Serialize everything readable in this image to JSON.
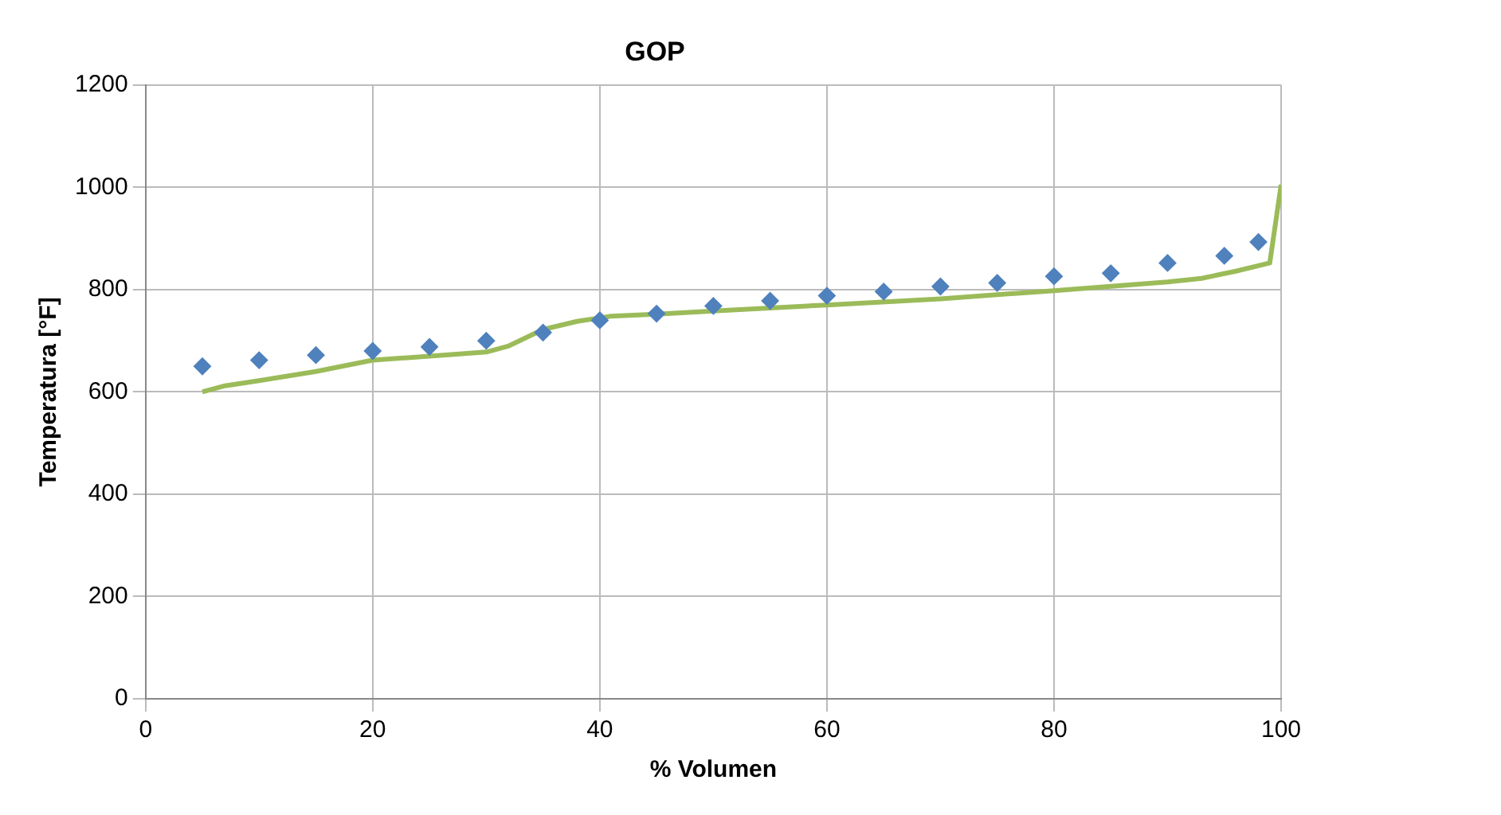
{
  "chart_data": {
    "type": "scatter",
    "title": "GOP",
    "xlabel": "% Volumen",
    "ylabel": "Temperatura [°F]",
    "xlim": [
      0,
      100
    ],
    "xticks": [
      0,
      20,
      40,
      60,
      80,
      100
    ],
    "ylim": [
      0,
      1200
    ],
    "yticks": [
      0,
      200,
      400,
      600,
      800,
      1000,
      1200
    ],
    "grid": true,
    "legend": false,
    "series": [
      {
        "type": "scatter",
        "marker": "diamond",
        "color": "#4f81bd",
        "x": [
          5,
          10,
          15,
          20,
          25,
          30,
          35,
          40,
          45,
          50,
          55,
          60,
          65,
          70,
          75,
          80,
          85,
          90,
          95,
          98
        ],
        "values": [
          650,
          662,
          672,
          680,
          688,
          700,
          716,
          740,
          753,
          768,
          778,
          788,
          796,
          806,
          813,
          826,
          832,
          852,
          866,
          893
        ]
      },
      {
        "type": "line",
        "marker": "none",
        "color": "#9bbb59",
        "x": [
          5,
          7,
          10,
          15,
          20,
          25,
          30,
          32,
          35,
          38,
          41,
          45,
          50,
          60,
          70,
          80,
          90,
          93,
          96,
          99,
          100
        ],
        "values": [
          600,
          612,
          622,
          640,
          662,
          670,
          678,
          690,
          722,
          738,
          748,
          752,
          758,
          770,
          782,
          798,
          815,
          822,
          836,
          852,
          1005
        ]
      }
    ]
  }
}
